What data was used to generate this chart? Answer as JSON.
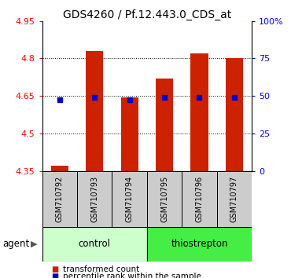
{
  "title": "GDS4260 / Pf.12.443.0_CDS_at",
  "samples": [
    "GSM710792",
    "GSM710793",
    "GSM710794",
    "GSM710795",
    "GSM710796",
    "GSM710797"
  ],
  "red_values": [
    4.37,
    4.83,
    4.645,
    4.72,
    4.82,
    4.8
  ],
  "blue_values": [
    4.635,
    4.645,
    4.635,
    4.645,
    4.645,
    4.645
  ],
  "ylim_left": [
    4.35,
    4.95
  ],
  "ylim_right": [
    0,
    100
  ],
  "yticks_left": [
    4.35,
    4.5,
    4.65,
    4.8,
    4.95
  ],
  "ytick_labels_left": [
    "4.35",
    "4.5",
    "4.65",
    "4.8",
    "4.95"
  ],
  "yticks_right": [
    0,
    25,
    50,
    75,
    100
  ],
  "ytick_labels_right": [
    "0",
    "25",
    "50",
    "75",
    "100%"
  ],
  "hlines": [
    4.5,
    4.65,
    4.8
  ],
  "bar_bottom": 4.35,
  "bar_width": 0.5,
  "blue_marker_size": 5,
  "control_label": "control",
  "thiostrepton_label": "thiostrepton",
  "agent_label": "agent",
  "legend_red": "transformed count",
  "legend_blue": "percentile rank within the sample",
  "red_color": "#cc2200",
  "blue_color": "#0000cc",
  "control_bg": "#ccffcc",
  "thiostrepton_bg": "#44ee44",
  "bar_bg": "#cccccc",
  "title_fontsize": 10,
  "tick_fontsize": 8,
  "legend_fontsize": 7.5,
  "sample_fontsize": 7
}
